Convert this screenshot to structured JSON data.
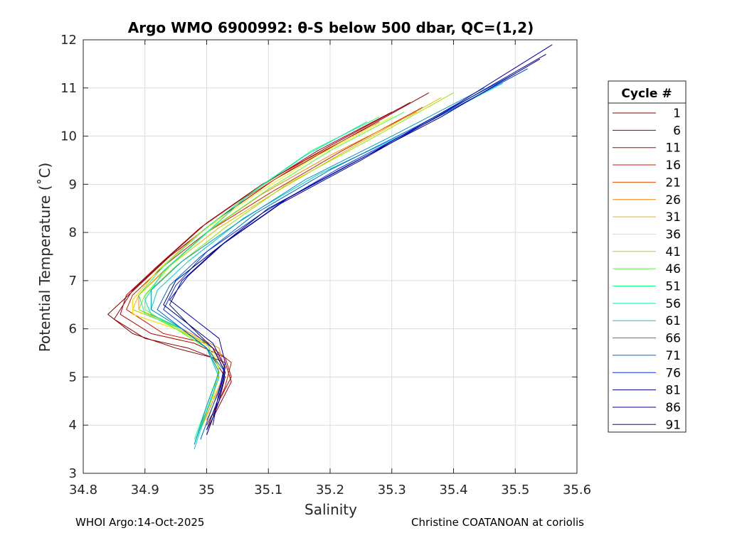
{
  "chart_data": {
    "type": "line",
    "title": "Argo WMO 6900992: θ-S below 500 dbar,  QC=(1,2)",
    "xlabel": "Salinity",
    "ylabel": "Potential Temperature (˚C)",
    "xlim": [
      34.8,
      35.6
    ],
    "ylim": [
      3,
      12
    ],
    "grid": true,
    "xticks": [
      34.8,
      34.9,
      35.0,
      35.1,
      35.2,
      35.3,
      35.4,
      35.5,
      35.6
    ],
    "xtick_labels": [
      "34.8",
      "34.9",
      "35",
      "35.1",
      "35.2",
      "35.3",
      "35.4",
      "35.5",
      "35.6"
    ],
    "yticks": [
      3,
      4,
      5,
      6,
      7,
      8,
      9,
      10,
      11,
      12
    ],
    "ytick_labels": [
      "3",
      "4",
      "5",
      "6",
      "7",
      "8",
      "9",
      "10",
      "11",
      "12"
    ],
    "legend_title": "Cycle #",
    "legend_position": "right-outside",
    "series": [
      {
        "name": "1",
        "color": "#800000",
        "points": [
          [
            35.36,
            10.9
          ],
          [
            35.22,
            9.9
          ],
          [
            35.11,
            9.1
          ],
          [
            35.02,
            8.3
          ],
          [
            34.94,
            7.5
          ],
          [
            34.89,
            6.9
          ],
          [
            34.84,
            6.3
          ],
          [
            34.88,
            5.9
          ],
          [
            34.95,
            5.6
          ],
          [
            35.01,
            5.4
          ],
          [
            35.03,
            5.0
          ],
          [
            35.02,
            4.5
          ],
          [
            35.0,
            4.0
          ]
        ]
      },
      {
        "name": "6",
        "color": "#990000",
        "points": [
          [
            35.33,
            10.7
          ],
          [
            35.2,
            9.8
          ],
          [
            35.09,
            9.0
          ],
          [
            35.0,
            8.2
          ],
          [
            34.93,
            7.4
          ],
          [
            34.88,
            6.8
          ],
          [
            34.85,
            6.2
          ],
          [
            34.9,
            5.8
          ],
          [
            34.97,
            5.6
          ],
          [
            35.03,
            5.3
          ],
          [
            35.04,
            4.9
          ],
          [
            35.02,
            4.4
          ],
          [
            35.0,
            3.9
          ]
        ]
      },
      {
        "name": "11",
        "color": "#b30000",
        "points": [
          [
            35.3,
            10.5
          ],
          [
            35.18,
            9.7
          ],
          [
            35.08,
            8.9
          ],
          [
            34.99,
            8.1
          ],
          [
            34.92,
            7.3
          ],
          [
            34.87,
            6.7
          ],
          [
            34.86,
            6.3
          ],
          [
            34.91,
            5.9
          ],
          [
            34.98,
            5.7
          ],
          [
            35.03,
            5.4
          ],
          [
            35.04,
            5.0
          ],
          [
            35.02,
            4.5
          ]
        ]
      },
      {
        "name": "16",
        "color": "#cc1a00",
        "points": [
          [
            35.35,
            10.6
          ],
          [
            35.22,
            9.7
          ],
          [
            35.1,
            8.8
          ],
          [
            35.0,
            8.0
          ],
          [
            34.93,
            7.3
          ],
          [
            34.88,
            6.7
          ],
          [
            34.87,
            6.4
          ],
          [
            34.93,
            5.9
          ],
          [
            35.0,
            5.7
          ],
          [
            35.04,
            5.3
          ],
          [
            35.03,
            4.8
          ],
          [
            35.01,
            4.2
          ]
        ]
      },
      {
        "name": "21",
        "color": "#e64d00",
        "points": [
          [
            35.28,
            10.3
          ],
          [
            35.16,
            9.5
          ],
          [
            35.06,
            8.7
          ],
          [
            34.98,
            7.9
          ],
          [
            34.92,
            7.2
          ],
          [
            34.88,
            6.6
          ],
          [
            34.88,
            6.3
          ],
          [
            34.95,
            6.0
          ],
          [
            35.01,
            5.6
          ],
          [
            35.03,
            5.2
          ],
          [
            35.02,
            4.7
          ],
          [
            35.0,
            4.1
          ]
        ]
      },
      {
        "name": "26",
        "color": "#ff8000",
        "points": [
          [
            35.34,
            10.5
          ],
          [
            35.2,
            9.6
          ],
          [
            35.09,
            8.8
          ],
          [
            35.0,
            8.0
          ],
          [
            34.93,
            7.2
          ],
          [
            34.89,
            6.7
          ],
          [
            34.89,
            6.4
          ],
          [
            34.96,
            6.0
          ],
          [
            35.02,
            5.6
          ],
          [
            35.03,
            5.1
          ],
          [
            35.01,
            4.5
          ],
          [
            34.99,
            3.9
          ]
        ]
      },
      {
        "name": "31",
        "color": "#e6b800",
        "points": [
          [
            35.38,
            10.8
          ],
          [
            35.24,
            9.8
          ],
          [
            35.12,
            8.9
          ],
          [
            35.02,
            8.1
          ],
          [
            34.94,
            7.3
          ],
          [
            34.89,
            6.7
          ],
          [
            34.88,
            6.4
          ],
          [
            34.94,
            6.1
          ],
          [
            35.0,
            5.7
          ],
          [
            35.02,
            5.2
          ],
          [
            35.01,
            4.6
          ],
          [
            34.99,
            4.0
          ]
        ]
      },
      {
        "name": "36",
        "color": "#ffee00",
        "points": [
          [
            35.3,
            10.4
          ],
          [
            35.18,
            9.6
          ],
          [
            35.08,
            8.8
          ],
          [
            34.99,
            8.0
          ],
          [
            34.92,
            7.2
          ],
          [
            34.88,
            6.6
          ],
          [
            34.88,
            6.3
          ],
          [
            34.95,
            6.0
          ],
          [
            35.01,
            5.6
          ],
          [
            35.02,
            5.1
          ],
          [
            35.01,
            4.5
          ]
        ]
      },
      {
        "name": "41",
        "color": "#99e600",
        "points": [
          [
            35.4,
            10.9
          ],
          [
            35.26,
            9.9
          ],
          [
            35.13,
            9.0
          ],
          [
            35.03,
            8.1
          ],
          [
            34.95,
            7.3
          ],
          [
            34.9,
            6.7
          ],
          [
            34.89,
            6.4
          ],
          [
            34.95,
            6.0
          ],
          [
            35.0,
            5.7
          ],
          [
            35.02,
            5.2
          ],
          [
            35.01,
            4.6
          ],
          [
            34.99,
            3.9
          ]
        ]
      },
      {
        "name": "46",
        "color": "#4dff33",
        "points": [
          [
            35.32,
            10.5
          ],
          [
            35.2,
            9.7
          ],
          [
            35.1,
            8.9
          ],
          [
            35.01,
            8.1
          ],
          [
            34.94,
            7.3
          ],
          [
            34.9,
            6.7
          ],
          [
            34.9,
            6.4
          ],
          [
            34.95,
            6.0
          ],
          [
            35.0,
            5.6
          ],
          [
            35.02,
            5.1
          ],
          [
            35.0,
            4.4
          ]
        ]
      },
      {
        "name": "51",
        "color": "#1aff80",
        "points": [
          [
            35.28,
            10.4
          ],
          [
            35.17,
            9.7
          ],
          [
            35.08,
            8.9
          ],
          [
            35.0,
            8.1
          ],
          [
            34.93,
            7.3
          ],
          [
            34.89,
            6.7
          ],
          [
            34.9,
            6.3
          ],
          [
            34.96,
            6.0
          ],
          [
            35.0,
            5.6
          ],
          [
            35.02,
            5.1
          ],
          [
            35.0,
            4.4
          ],
          [
            34.98,
            3.7
          ]
        ]
      },
      {
        "name": "56",
        "color": "#00e6b3",
        "points": [
          [
            35.26,
            10.3
          ],
          [
            35.16,
            9.6
          ],
          [
            35.07,
            8.8
          ],
          [
            35.0,
            8.0
          ],
          [
            34.93,
            7.2
          ],
          [
            34.9,
            6.6
          ],
          [
            34.91,
            6.3
          ],
          [
            34.96,
            6.0
          ],
          [
            35.0,
            5.6
          ],
          [
            35.02,
            5.0
          ],
          [
            35.0,
            4.3
          ],
          [
            34.98,
            3.6
          ]
        ]
      },
      {
        "name": "61",
        "color": "#00cccc",
        "points": [
          [
            35.48,
            11.1
          ],
          [
            35.33,
            10.1
          ],
          [
            35.18,
            9.2
          ],
          [
            35.06,
            8.3
          ],
          [
            34.97,
            7.4
          ],
          [
            34.92,
            6.8
          ],
          [
            34.91,
            6.4
          ],
          [
            34.96,
            6.0
          ],
          [
            35.0,
            5.6
          ],
          [
            35.02,
            5.0
          ],
          [
            35.0,
            4.3
          ],
          [
            34.98,
            3.5
          ]
        ]
      },
      {
        "name": "66",
        "color": "#0099cc",
        "points": [
          [
            35.45,
            11.0
          ],
          [
            35.3,
            10.0
          ],
          [
            35.16,
            9.1
          ],
          [
            35.05,
            8.2
          ],
          [
            34.96,
            7.4
          ],
          [
            34.91,
            6.8
          ],
          [
            34.91,
            6.4
          ],
          [
            34.96,
            6.0
          ],
          [
            35.0,
            5.6
          ],
          [
            35.02,
            5.1
          ],
          [
            35.0,
            4.4
          ],
          [
            34.98,
            3.6
          ]
        ]
      },
      {
        "name": "71",
        "color": "#0066cc",
        "points": [
          [
            35.5,
            11.3
          ],
          [
            35.34,
            10.2
          ],
          [
            35.2,
            9.3
          ],
          [
            35.08,
            8.4
          ],
          [
            34.99,
            7.5
          ],
          [
            34.94,
            6.9
          ],
          [
            34.92,
            6.4
          ],
          [
            34.96,
            6.0
          ],
          [
            35.0,
            5.6
          ],
          [
            35.03,
            5.1
          ],
          [
            35.01,
            4.4
          ],
          [
            34.99,
            3.7
          ]
        ]
      },
      {
        "name": "76",
        "color": "#0033e6",
        "points": [
          [
            35.52,
            11.4
          ],
          [
            35.36,
            10.3
          ],
          [
            35.21,
            9.3
          ],
          [
            35.09,
            8.4
          ],
          [
            35.0,
            7.6
          ],
          [
            34.95,
            6.9
          ],
          [
            34.93,
            6.4
          ],
          [
            34.97,
            6.0
          ],
          [
            35.01,
            5.6
          ],
          [
            35.03,
            5.1
          ],
          [
            35.02,
            4.5
          ],
          [
            35.0,
            3.8
          ]
        ]
      },
      {
        "name": "81",
        "color": "#000080",
        "points": [
          [
            35.54,
            11.6
          ],
          [
            35.38,
            10.4
          ],
          [
            35.23,
            9.4
          ],
          [
            35.1,
            8.5
          ],
          [
            35.01,
            7.6
          ],
          [
            34.95,
            7.0
          ],
          [
            34.93,
            6.5
          ],
          [
            34.97,
            6.1
          ],
          [
            35.01,
            5.6
          ],
          [
            35.03,
            5.1
          ],
          [
            35.02,
            4.5
          ],
          [
            35.0,
            3.8
          ]
        ]
      },
      {
        "name": "86",
        "color": "#00009a",
        "points": [
          [
            35.55,
            11.7
          ],
          [
            35.4,
            10.6
          ],
          [
            35.25,
            9.5
          ],
          [
            35.12,
            8.6
          ],
          [
            35.02,
            7.7
          ],
          [
            34.96,
            7.0
          ],
          [
            34.94,
            6.5
          ],
          [
            34.97,
            6.1
          ],
          [
            35.01,
            5.7
          ],
          [
            35.03,
            5.2
          ],
          [
            35.02,
            4.6
          ],
          [
            35.0,
            3.9
          ]
        ]
      },
      {
        "name": "91",
        "color": "#0000b4",
        "points": [
          [
            35.56,
            11.9
          ],
          [
            35.41,
            10.7
          ],
          [
            35.26,
            9.6
          ],
          [
            35.13,
            8.7
          ],
          [
            35.03,
            7.8
          ],
          [
            34.97,
            7.1
          ],
          [
            34.94,
            6.6
          ],
          [
            34.98,
            6.2
          ],
          [
            35.02,
            5.8
          ],
          [
            35.03,
            5.3
          ],
          [
            35.02,
            4.7
          ],
          [
            35.01,
            4.0
          ]
        ]
      }
    ]
  },
  "footer": {
    "left": "WHOI Argo:14-Oct-2025",
    "right": "Christine COATANOAN at coriolis"
  }
}
